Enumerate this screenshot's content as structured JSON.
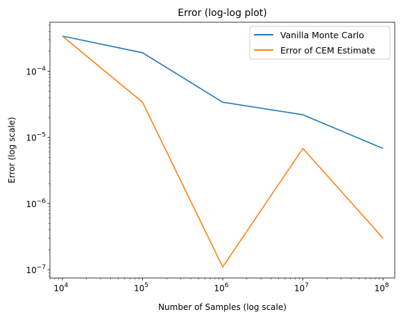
{
  "chart_data": {
    "type": "line",
    "title": "Error (log-log plot)",
    "xlabel": "Number of Samples (log scale)",
    "ylabel": "Error (log scale)",
    "xscale": "log",
    "yscale": "log",
    "xlim": [
      7000,
      140000000
    ],
    "ylim": [
      7.5e-08,
      0.00055
    ],
    "grid": false,
    "legend_position": "top-right",
    "x": [
      10000,
      100000,
      1000000,
      10000000,
      100000000
    ],
    "x_tick_labels": [
      {
        "value": 10000,
        "base": "10",
        "exp": "4"
      },
      {
        "value": 100000,
        "base": "10",
        "exp": "5"
      },
      {
        "value": 1000000,
        "base": "10",
        "exp": "6"
      },
      {
        "value": 10000000,
        "base": "10",
        "exp": "7"
      },
      {
        "value": 100000000,
        "base": "10",
        "exp": "8"
      }
    ],
    "y_tick_labels": [
      {
        "value": 1e-07,
        "base": "10",
        "exp": "−7"
      },
      {
        "value": 1e-06,
        "base": "10",
        "exp": "−6"
      },
      {
        "value": 1e-05,
        "base": "10",
        "exp": "−5"
      },
      {
        "value": 0.0001,
        "base": "10",
        "exp": "−4"
      }
    ],
    "series": [
      {
        "name": "Vanilla Monte Carlo",
        "color": "#1f77b4",
        "values": [
          0.00034,
          0.00019,
          3.4e-05,
          2.2e-05,
          6.8e-06
        ]
      },
      {
        "name": "Error of CEM Estimate",
        "color": "#ff7f0e",
        "values": [
          0.00034,
          3.4e-05,
          1.1e-07,
          6.8e-06,
          3e-07
        ]
      }
    ]
  }
}
